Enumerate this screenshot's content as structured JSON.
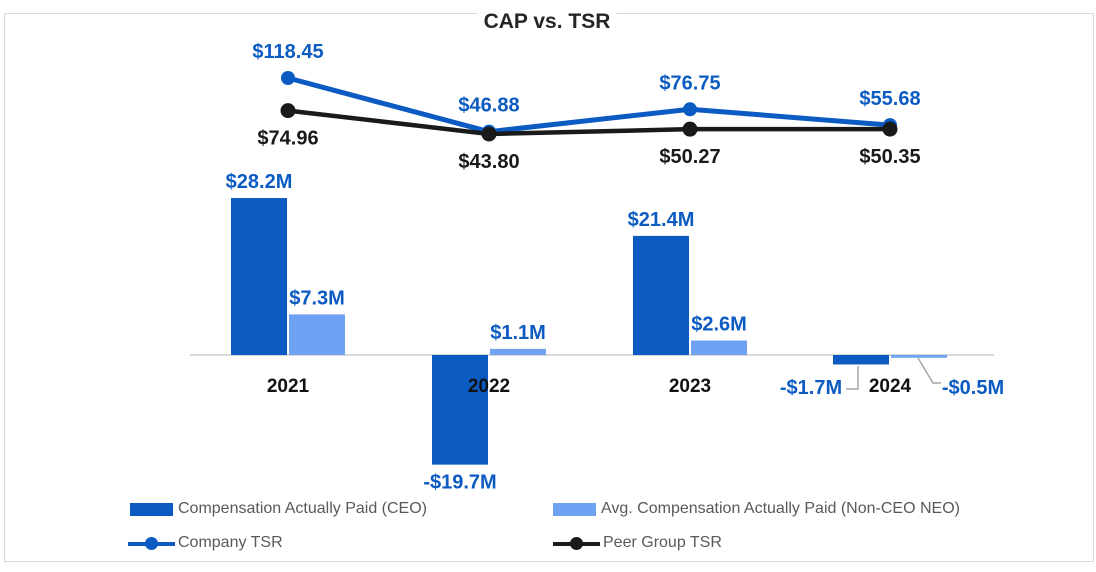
{
  "title": "CAP vs. TSR",
  "chart_data": {
    "type": "combo-bar-line",
    "categories": [
      "2021",
      "2022",
      "2023",
      "2024"
    ],
    "bar_unit": "millions USD",
    "value_axis_visible": false,
    "gridlines": false,
    "bar_series": [
      {
        "name": "Compensation Actually Paid (CEO)",
        "color": "#0B5BC2",
        "label_color": "#0B5BC2",
        "values": [
          28.2,
          -19.7,
          21.4,
          -1.7
        ],
        "labels": [
          "$28.2M",
          "-$19.7M",
          "$21.4M",
          "-$1.7M"
        ]
      },
      {
        "name": "Avg. Compensation Actually Paid (Non-CEO NEO)",
        "color": "#6FA2F2",
        "label_color": "#0B5BC2",
        "values": [
          7.3,
          1.1,
          2.6,
          -0.5
        ],
        "labels": [
          "$7.3M",
          "$1.1M",
          "$2.6M",
          "-$0.5M"
        ]
      }
    ],
    "line_series": [
      {
        "name": "Company TSR",
        "color": "#0B5BC2",
        "label_color": "#0B5BC2",
        "label_position": "above",
        "values": [
          118.45,
          46.88,
          76.75,
          55.68
        ],
        "labels": [
          "$118.45",
          "$46.88",
          "$76.75",
          "$55.68"
        ]
      },
      {
        "name": "Peer Group TSR",
        "color": "#1A1A1A",
        "label_color": "#1A1A1A",
        "label_position": "below",
        "values": [
          74.96,
          43.8,
          50.27,
          50.35
        ],
        "labels": [
          "$74.96",
          "$43.80",
          "$50.27",
          "$50.35"
        ]
      }
    ]
  },
  "legend": {
    "text_color": "#595959",
    "items": [
      {
        "label": "Compensation Actually Paid (CEO)",
        "type": "swatch",
        "color": "#0B5BC2"
      },
      {
        "label": "Avg. Compensation Actually Paid (Non-CEO NEO)",
        "type": "swatch",
        "color": "#6FA2F2"
      },
      {
        "label": "Company TSR",
        "type": "line-marker",
        "color": "#0B5BC2"
      },
      {
        "label": "Peer Group TSR",
        "type": "line-marker",
        "color": "#1A1A1A"
      }
    ]
  },
  "colors": {
    "axis_line": "#D9D9D9",
    "leader_line": "#A6A6A6",
    "category_label": "#111111",
    "title": "#262626",
    "frame_border": "#D9D9D9"
  }
}
